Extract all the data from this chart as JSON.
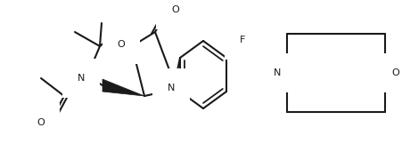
{
  "bg": "#ffffff",
  "lc": "#1a1a1a",
  "lw": 1.5,
  "fs": 8.0,
  "fig_w": 4.52,
  "fig_h": 1.62,
  "dpi": 100,
  "xlim": [
    0,
    452
  ],
  "ylim": [
    0,
    162
  ]
}
